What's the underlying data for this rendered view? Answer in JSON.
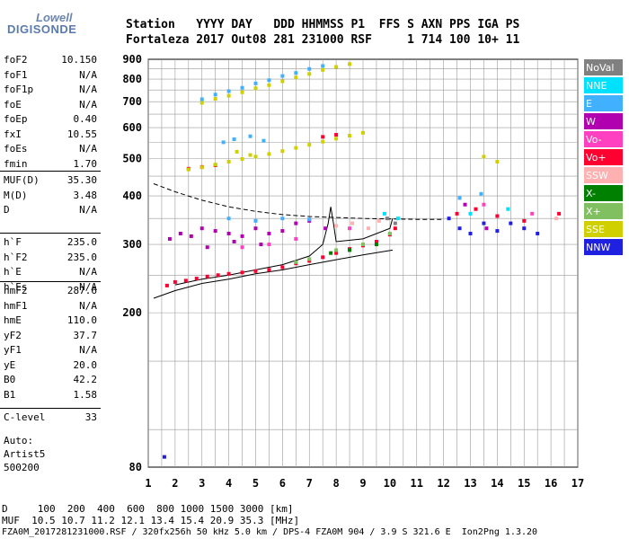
{
  "logo": {
    "line1": "Lowell",
    "line2": "DIGISONDE"
  },
  "header": {
    "row1": "Station   YYYY DAY   DDD HHMMSS P1  FFS S AXN PPS IGA PS",
    "row2": "Fortaleza 2017 Out08 281 231000 RSF     1 714 100 10+ 11"
  },
  "params": {
    "group1": [
      {
        "label": "foF2",
        "value": "10.150"
      },
      {
        "label": "foF1",
        "value": "N/A"
      },
      {
        "label": "foF1p",
        "value": "N/A"
      },
      {
        "label": "foE",
        "value": "N/A"
      },
      {
        "label": "foEp",
        "value": "0.40"
      },
      {
        "label": "fxI",
        "value": "10.55"
      },
      {
        "label": "foEs",
        "value": "N/A"
      },
      {
        "label": "fmin",
        "value": "1.70"
      }
    ],
    "group2": [
      {
        "label": "MUF(D)",
        "value": "35.30"
      },
      {
        "label": "M(D)",
        "value": "3.48"
      },
      {
        "label": "D",
        "value": "N/A"
      }
    ],
    "group3": [
      {
        "label": "h`F",
        "value": "235.0"
      },
      {
        "label": "h`F2",
        "value": "235.0"
      },
      {
        "label": "h`E",
        "value": "N/A"
      },
      {
        "label": "h`Es",
        "value": "N/A"
      }
    ],
    "group4": [
      {
        "label": "hmF2",
        "value": "287.6"
      },
      {
        "label": "hmF1",
        "value": "N/A"
      },
      {
        "label": "hmE",
        "value": "110.0"
      },
      {
        "label": "yF2",
        "value": "37.7"
      },
      {
        "label": "yF1",
        "value": "N/A"
      },
      {
        "label": "yE",
        "value": "20.0"
      },
      {
        "label": "B0",
        "value": "42.2"
      },
      {
        "label": "B1",
        "value": "1.58"
      }
    ],
    "group5": [
      {
        "label": "C-level",
        "value": "33"
      }
    ],
    "notes": [
      "Auto:",
      "Artist5",
      "500200"
    ]
  },
  "legend": [
    {
      "label": "NoVal",
      "color": "#808080"
    },
    {
      "label": "NNE",
      "color": "#00e0ff"
    },
    {
      "label": "E",
      "color": "#40b0ff"
    },
    {
      "label": "W",
      "color": "#b000b0"
    },
    {
      "label": "Vo-",
      "color": "#ff40c0"
    },
    {
      "label": "Vo+",
      "color": "#ff0030"
    },
    {
      "label": "SSW",
      "color": "#ffb0b0"
    },
    {
      "label": "X-",
      "color": "#008000"
    },
    {
      "label": "X+",
      "color": "#80c060"
    },
    {
      "label": "SSE",
      "color": "#d0d000"
    },
    {
      "label": "NNW",
      "color": "#2020e0"
    }
  ],
  "footer": {
    "d_row": "D     100  200  400  600  800 1000 1500 3000 [km]",
    "muf_row": "MUF  10.5 10.7 11.2 12.1 13.4 15.4 20.9 35.3 [MHz]",
    "file_row": "FZA0M_2017281231000.RSF / 320fx256h 50 kHz 5.0 km / DPS-4 FZA0M 904 / 3.9 S 321.6 E  Ion2Png 1.3.20"
  },
  "chart_data": {
    "type": "scatter",
    "title": "",
    "xlabel": "",
    "ylabel": "",
    "xlim": [
      1,
      17
    ],
    "ylim": [
      80,
      900
    ],
    "x_ticks": [
      1,
      2,
      3,
      4,
      5,
      6,
      7,
      8,
      9,
      10,
      11,
      12,
      13,
      14,
      15,
      16,
      17
    ],
    "y_ticks": [
      80,
      200,
      300,
      400,
      500,
      600,
      700,
      800,
      900
    ],
    "y_scale": "log",
    "grid": true,
    "legend_position": "right",
    "series": [
      {
        "name": "Vo+",
        "color": "#ff0030",
        "points": [
          [
            1.7,
            235
          ],
          [
            2.0,
            240
          ],
          [
            2.4,
            242
          ],
          [
            2.8,
            245
          ],
          [
            3.2,
            248
          ],
          [
            3.6,
            250
          ],
          [
            4.0,
            252
          ],
          [
            4.5,
            254
          ],
          [
            5.0,
            256
          ],
          [
            5.5,
            258
          ],
          [
            6.0,
            262
          ],
          [
            6.5,
            268
          ],
          [
            7.0,
            272
          ],
          [
            7.5,
            278
          ],
          [
            8.0,
            285
          ],
          [
            8.5,
            292
          ],
          [
            9.0,
            298
          ],
          [
            9.5,
            305
          ],
          [
            10.0,
            318
          ],
          [
            10.2,
            330
          ],
          [
            2.5,
            470
          ],
          [
            3.0,
            475
          ],
          [
            3.5,
            480
          ],
          [
            7.5,
            568
          ],
          [
            8.0,
            575
          ],
          [
            12.5,
            360
          ],
          [
            13.2,
            370
          ],
          [
            14.0,
            355
          ],
          [
            15.0,
            345
          ],
          [
            16.3,
            360
          ]
        ]
      },
      {
        "name": "W",
        "color": "#b000b0",
        "points": [
          [
            1.8,
            310
          ],
          [
            2.2,
            320
          ],
          [
            2.6,
            315
          ],
          [
            3.0,
            330
          ],
          [
            3.5,
            325
          ],
          [
            4.0,
            320
          ],
          [
            4.5,
            315
          ],
          [
            5.0,
            330
          ],
          [
            5.5,
            320
          ],
          [
            6.0,
            325
          ],
          [
            6.5,
            340
          ],
          [
            7.0,
            345
          ],
          [
            7.6,
            330
          ],
          [
            3.2,
            295
          ],
          [
            4.2,
            305
          ],
          [
            5.2,
            300
          ],
          [
            12.8,
            380
          ],
          [
            13.6,
            330
          ]
        ]
      },
      {
        "name": "E",
        "color": "#40b0ff",
        "points": [
          [
            3.0,
            710
          ],
          [
            3.5,
            730
          ],
          [
            4.0,
            745
          ],
          [
            4.5,
            760
          ],
          [
            5.0,
            780
          ],
          [
            5.5,
            795
          ],
          [
            6.0,
            815
          ],
          [
            6.5,
            830
          ],
          [
            7.0,
            850
          ],
          [
            7.5,
            865
          ],
          [
            3.8,
            550
          ],
          [
            4.2,
            560
          ],
          [
            4.8,
            570
          ],
          [
            5.3,
            555
          ],
          [
            4.0,
            350
          ],
          [
            5.0,
            345
          ],
          [
            6.0,
            350
          ],
          [
            7.0,
            348
          ],
          [
            12.6,
            395
          ],
          [
            13.4,
            405
          ]
        ]
      },
      {
        "name": "NNE",
        "color": "#00e0ff",
        "points": [
          [
            9.8,
            360
          ],
          [
            10.3,
            350
          ],
          [
            13.0,
            360
          ],
          [
            14.4,
            370
          ]
        ]
      },
      {
        "name": "Vo-",
        "color": "#ff40c0",
        "points": [
          [
            4.5,
            295
          ],
          [
            5.5,
            300
          ],
          [
            6.5,
            310
          ],
          [
            8.5,
            330
          ],
          [
            13.5,
            380
          ],
          [
            15.3,
            360
          ]
        ]
      },
      {
        "name": "SSW",
        "color": "#ffb0b0",
        "points": [
          [
            8.0,
            335
          ],
          [
            8.6,
            340
          ],
          [
            9.2,
            330
          ],
          [
            9.6,
            345
          ],
          [
            16.2,
            350
          ]
        ]
      },
      {
        "name": "X-",
        "color": "#008000",
        "points": [
          [
            7.8,
            285
          ],
          [
            8.5,
            290
          ],
          [
            9.5,
            300
          ]
        ]
      },
      {
        "name": "X+",
        "color": "#80c060",
        "points": [
          [
            6.5,
            270
          ],
          [
            7.0,
            275
          ],
          [
            8.0,
            290
          ],
          [
            9.0,
            300
          ],
          [
            10.0,
            320
          ]
        ]
      },
      {
        "name": "SSE",
        "color": "#d0d000",
        "points": [
          [
            3.0,
            695
          ],
          [
            3.5,
            712
          ],
          [
            4.0,
            725
          ],
          [
            4.5,
            740
          ],
          [
            5.0,
            758
          ],
          [
            5.5,
            772
          ],
          [
            6.0,
            790
          ],
          [
            6.5,
            808
          ],
          [
            7.0,
            825
          ],
          [
            7.5,
            845
          ],
          [
            8.0,
            860
          ],
          [
            8.5,
            875
          ],
          [
            2.5,
            468
          ],
          [
            3.0,
            474
          ],
          [
            3.5,
            482
          ],
          [
            4.0,
            490
          ],
          [
            4.5,
            498
          ],
          [
            5.0,
            505
          ],
          [
            5.5,
            513
          ],
          [
            6.0,
            522
          ],
          [
            6.5,
            532
          ],
          [
            7.0,
            542
          ],
          [
            7.5,
            552
          ],
          [
            8.0,
            562
          ],
          [
            8.5,
            572
          ],
          [
            9.0,
            582
          ],
          [
            4.3,
            520
          ],
          [
            4.8,
            510
          ],
          [
            13.5,
            505
          ],
          [
            14.0,
            490
          ]
        ]
      },
      {
        "name": "NNW",
        "color": "#2020e0",
        "points": [
          [
            12.2,
            350
          ],
          [
            12.6,
            330
          ],
          [
            13.0,
            320
          ],
          [
            13.5,
            340
          ],
          [
            14.0,
            325
          ],
          [
            14.5,
            340
          ],
          [
            15.0,
            330
          ],
          [
            15.5,
            320
          ],
          [
            1.6,
            85
          ]
        ]
      },
      {
        "name": "NoVal",
        "color": "#808080",
        "points": [
          [
            9.9,
            350
          ],
          [
            10.2,
            340
          ]
        ]
      }
    ],
    "lines": [
      {
        "name": "profile-lower",
        "color": "#000000",
        "points": [
          [
            1.2,
            218
          ],
          [
            2.0,
            228
          ],
          [
            3.0,
            238
          ],
          [
            4.0,
            244
          ],
          [
            5.0,
            252
          ],
          [
            6.0,
            258
          ],
          [
            7.0,
            266
          ],
          [
            8.0,
            274
          ],
          [
            9.0,
            282
          ],
          [
            10.1,
            290
          ]
        ]
      },
      {
        "name": "profile-trace",
        "color": "#000000",
        "points": [
          [
            2.0,
            236
          ],
          [
            3.0,
            244
          ],
          [
            4.0,
            250
          ],
          [
            5.0,
            258
          ],
          [
            6.0,
            266
          ],
          [
            7.0,
            280
          ],
          [
            7.5,
            300
          ],
          [
            7.7,
            340
          ],
          [
            7.8,
            375
          ],
          [
            7.9,
            340
          ],
          [
            8.0,
            305
          ],
          [
            9.0,
            310
          ],
          [
            10.0,
            330
          ],
          [
            10.1,
            350
          ]
        ]
      },
      {
        "name": "muf-dashed",
        "color": "#000000",
        "dashed": true,
        "points": [
          [
            1.2,
            430
          ],
          [
            2.0,
            410
          ],
          [
            3.0,
            390
          ],
          [
            4.0,
            375
          ],
          [
            5.0,
            365
          ],
          [
            6.0,
            358
          ],
          [
            7.0,
            354
          ],
          [
            8.0,
            352
          ],
          [
            9.0,
            350
          ],
          [
            10.0,
            349
          ],
          [
            11.0,
            348
          ],
          [
            12.0,
            348
          ]
        ]
      }
    ]
  }
}
